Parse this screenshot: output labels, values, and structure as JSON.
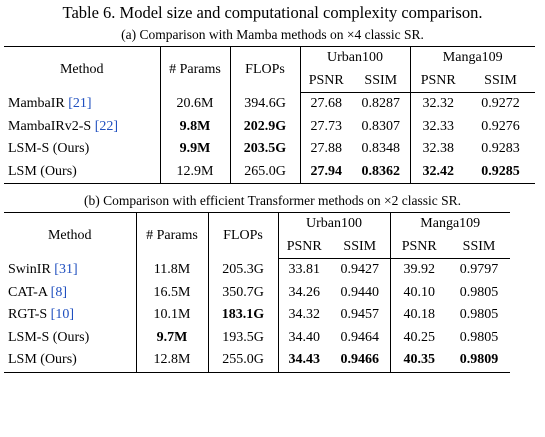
{
  "title": "Table 6. Model size and computational complexity comparison.",
  "tables": [
    {
      "caption": "(a) Comparison with Mamba methods on ×4 classic SR.",
      "header": {
        "method": "Method",
        "params": "# Params",
        "flops": "FLOPs",
        "groups": [
          "Urban100",
          "Manga109"
        ],
        "metrics": [
          "PSNR",
          "SSIM",
          "PSNR",
          "SSIM"
        ]
      },
      "rows": [
        {
          "method": "MambaIR",
          "ref": "[21]",
          "cells": [
            "20.6M",
            "394.6G",
            "27.68",
            "0.8287",
            "32.32",
            "0.9272"
          ],
          "bold": [
            false,
            false,
            false,
            false,
            false,
            false
          ]
        },
        {
          "method": "MambaIRv2-S",
          "ref": "[22]",
          "cells": [
            "9.8M",
            "202.9G",
            "27.73",
            "0.8307",
            "32.33",
            "0.9276"
          ],
          "bold": [
            true,
            true,
            false,
            false,
            false,
            false
          ]
        },
        {
          "method": "LSM-S (Ours)",
          "cells": [
            "9.9M",
            "203.5G",
            "27.88",
            "0.8348",
            "32.38",
            "0.9283"
          ],
          "bold": [
            true,
            true,
            false,
            false,
            false,
            false
          ]
        },
        {
          "method": "LSM (Ours)",
          "cells": [
            "12.9M",
            "265.0G",
            "27.94",
            "0.8362",
            "32.42",
            "0.9285"
          ],
          "bold": [
            false,
            false,
            true,
            true,
            true,
            true
          ]
        }
      ]
    },
    {
      "caption": "(b) Comparison with efficient Transformer methods on ×2 classic SR.",
      "header": {
        "method": "Method",
        "params": "# Params",
        "flops": "FLOPs",
        "groups": [
          "Urban100",
          "Manga109"
        ],
        "metrics": [
          "PSNR",
          "SSIM",
          "PSNR",
          "SSIM"
        ]
      },
      "rows": [
        {
          "method": "SwinIR",
          "ref": "[31]",
          "cells": [
            "11.8M",
            "205.3G",
            "33.81",
            "0.9427",
            "39.92",
            "0.9797"
          ],
          "bold": [
            false,
            false,
            false,
            false,
            false,
            false
          ]
        },
        {
          "method": "CAT-A",
          "ref": "[8]",
          "cells": [
            "16.5M",
            "350.7G",
            "34.26",
            "0.9440",
            "40.10",
            "0.9805"
          ],
          "bold": [
            false,
            false,
            false,
            false,
            false,
            false
          ]
        },
        {
          "method": "RGT-S",
          "ref": "[10]",
          "cells": [
            "10.1M",
            "183.1G",
            "34.32",
            "0.9457",
            "40.18",
            "0.9805"
          ],
          "bold": [
            false,
            true,
            false,
            false,
            false,
            false
          ]
        },
        {
          "method": "LSM-S (Ours)",
          "cells": [
            "9.7M",
            "193.5G",
            "34.40",
            "0.9464",
            "40.25",
            "0.9805"
          ],
          "bold": [
            true,
            false,
            false,
            false,
            false,
            false
          ]
        },
        {
          "method": "LSM (Ours)",
          "cells": [
            "12.8M",
            "255.0G",
            "34.43",
            "0.9466",
            "40.35",
            "0.9809"
          ],
          "bold": [
            false,
            false,
            true,
            true,
            true,
            true
          ]
        }
      ]
    }
  ]
}
